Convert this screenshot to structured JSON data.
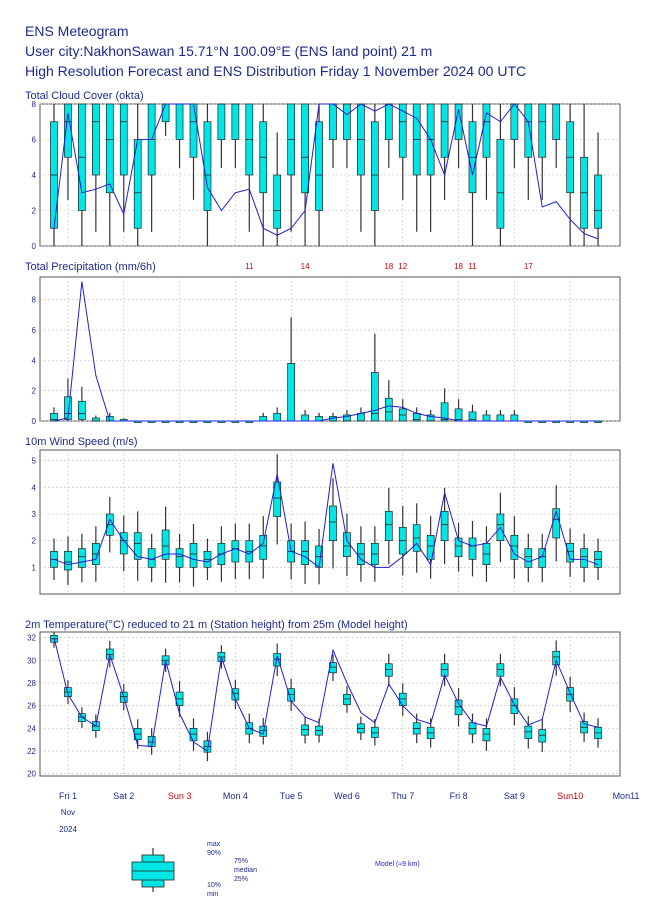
{
  "header": {
    "line1": "ENS Meteogram",
    "line2": "User city:NakhonSawan 15.71°N 100.09°E (ENS land point) 21 m",
    "line3": "High Resolution Forecast and ENS Distribution Friday 1 November 2024 00 UTC"
  },
  "x_axis": {
    "days": [
      {
        "label": "Fri 1",
        "color": "#1e2a8a"
      },
      {
        "label": "Sat 2",
        "color": "#1e2a8a"
      },
      {
        "label": "Sun 3",
        "color": "#cc0000"
      },
      {
        "label": "Mon 4",
        "color": "#1e2a8a"
      },
      {
        "label": "Tue 5",
        "color": "#1e2a8a"
      },
      {
        "label": "Wed 6",
        "color": "#1e2a8a"
      },
      {
        "label": "Thu 7",
        "color": "#1e2a8a"
      },
      {
        "label": "Fri 8",
        "color": "#1e2a8a"
      },
      {
        "label": "Sat 9",
        "color": "#1e2a8a"
      },
      {
        "label": "Sun10",
        "color": "#cc0000"
      },
      {
        "label": "Mon11",
        "color": "#1e2a8a"
      }
    ],
    "month": "Nov",
    "year": "2024"
  },
  "legend": {
    "max": "max",
    "p90": "90%",
    "p75": "75%",
    "median": "median",
    "p25": "25%",
    "p10": "10%",
    "min": "min",
    "model": "Model (≈9 km)"
  },
  "colors": {
    "box": "#00e6e6",
    "hres": "#1f1fd6",
    "text": "#1e2a8a",
    "exceed": "#cc0000"
  },
  "chart_data": [
    {
      "type": "box",
      "title": "Total Cloud Cover (okta)",
      "ylim": [
        0,
        8
      ],
      "yticks": [
        0,
        2,
        4,
        6,
        8
      ],
      "box_every": 1,
      "steps_per_day": 4,
      "n_steps": 40,
      "median": [
        4,
        7,
        5,
        7,
        6,
        7,
        3,
        6,
        8,
        8,
        7,
        4,
        8,
        8,
        6,
        5,
        2,
        6,
        5,
        4,
        8,
        8,
        6,
        4,
        8,
        7,
        6,
        6,
        7,
        8,
        5,
        7,
        3,
        8,
        7,
        7,
        8,
        5,
        3,
        2
      ],
      "p25": [
        1,
        5,
        2,
        4,
        3,
        4,
        1,
        4,
        7,
        6,
        5,
        2,
        6,
        6,
        4,
        3,
        1,
        4,
        3,
        2,
        6,
        6,
        4,
        2,
        6,
        5,
        4,
        4,
        5,
        6,
        3,
        5,
        1,
        6,
        5,
        5,
        6,
        3,
        1,
        1
      ],
      "p75": [
        7,
        8,
        8,
        8,
        8,
        8,
        6,
        8,
        8,
        8,
        8,
        7,
        8,
        8,
        8,
        7,
        4,
        8,
        8,
        7,
        8,
        8,
        8,
        7,
        8,
        8,
        8,
        8,
        8,
        8,
        7,
        8,
        6,
        8,
        8,
        8,
        8,
        7,
        5,
        4
      ],
      "hres": [
        1,
        7.5,
        3,
        3.2,
        3.5,
        1.8,
        6,
        6,
        8,
        8,
        8,
        3.3,
        2,
        3,
        3.2,
        1,
        0.6,
        1,
        2,
        8,
        8,
        7.4,
        8,
        7.6,
        8,
        7.6,
        7.2,
        6,
        4,
        7.7,
        4,
        7.5,
        7,
        8,
        7,
        2.2,
        2.5,
        1.5,
        0.7,
        0.4
      ],
      "exceed": []
    },
    {
      "type": "box",
      "title": "Total Precipitation (mm/6h)",
      "ylim": [
        0,
        9.5
      ],
      "yticks": [
        0,
        2,
        4,
        6,
        8
      ],
      "box_every": 1,
      "steps_per_day": 4,
      "n_steps": 40,
      "median": [
        0.1,
        0.5,
        0.5,
        0,
        0,
        0,
        0,
        0,
        0,
        0,
        0,
        0,
        0,
        0,
        0,
        0,
        0,
        0,
        0,
        0,
        0,
        0,
        0,
        0.5,
        0.6,
        0.4,
        0.1,
        0,
        0.1,
        0.1,
        0.1,
        0,
        0,
        0,
        0,
        0,
        0,
        0,
        0,
        0
      ],
      "p25": [
        0,
        0.1,
        0.1,
        0,
        0,
        0,
        0,
        0,
        0,
        0,
        0,
        0,
        0,
        0,
        0,
        0,
        0,
        0,
        0,
        0,
        0,
        0,
        0,
        0,
        0,
        0,
        0,
        0,
        0,
        0,
        0,
        0,
        0,
        0,
        0,
        0,
        0,
        0,
        0,
        0
      ],
      "p75": [
        0.5,
        1.6,
        1.3,
        0.2,
        0.3,
        0.1,
        0,
        0,
        0,
        0,
        0,
        0,
        0,
        0,
        0,
        0.3,
        0.5,
        3.8,
        0.4,
        0.3,
        0.3,
        0.4,
        0.5,
        3.2,
        1.5,
        0.8,
        0.5,
        0.4,
        1.2,
        0.8,
        0.6,
        0.4,
        0.4,
        0.4,
        0,
        0,
        0,
        0,
        0,
        0
      ],
      "hres": [
        0,
        0.2,
        9.2,
        3,
        0,
        0,
        0,
        0,
        0,
        0,
        0,
        0,
        0,
        0,
        0,
        0,
        0,
        0,
        0,
        0,
        0.2,
        0.3,
        0.5,
        0.7,
        1,
        0.9,
        0.5,
        0.3,
        0.2,
        0,
        0,
        0,
        0,
        0,
        0,
        0,
        0,
        0,
        0,
        0
      ],
      "exceed": [
        {
          "step": 14,
          "label": "11"
        },
        {
          "step": 18,
          "label": "14"
        },
        {
          "step": 24,
          "label": "18"
        },
        {
          "step": 25,
          "label": "12"
        },
        {
          "step": 29,
          "label": "18"
        },
        {
          "step": 30,
          "label": "11"
        },
        {
          "step": 34,
          "label": "17"
        }
      ]
    },
    {
      "type": "box",
      "title": "10m Wind Speed (m/s)",
      "ylim": [
        0,
        5.4
      ],
      "yticks": [
        1,
        2,
        3,
        4,
        5
      ],
      "box_every": 1,
      "steps_per_day": 4,
      "n_steps": 40,
      "median": [
        1.3,
        1.2,
        1.4,
        1.5,
        2.6,
        2.0,
        1.9,
        1.3,
        1.8,
        1.4,
        1.5,
        1.3,
        1.5,
        1.7,
        1.6,
        1.8,
        3.6,
        1.6,
        1.6,
        1.4,
        2.7,
        1.8,
        1.5,
        1.5,
        2.6,
        2.0,
        2.1,
        1.8,
        2.6,
        1.8,
        1.8,
        1.5,
        2.6,
        1.8,
        1.4,
        1.4,
        2.8,
        1.6,
        1.4,
        1.3
      ],
      "p25": [
        1.0,
        0.9,
        1.0,
        1.1,
        2.2,
        1.5,
        1.3,
        1.0,
        1.3,
        1.0,
        1.0,
        1.0,
        1.1,
        1.2,
        1.2,
        1.3,
        2.9,
        1.2,
        1.1,
        1.0,
        2.0,
        1.4,
        1.1,
        1.1,
        2.0,
        1.5,
        1.6,
        1.3,
        2.0,
        1.4,
        1.3,
        1.1,
        2.0,
        1.3,
        1.0,
        1.0,
        2.1,
        1.2,
        1.0,
        1.0
      ],
      "p75": [
        1.6,
        1.6,
        1.7,
        1.9,
        3.0,
        2.3,
        2.3,
        1.7,
        2.4,
        1.7,
        1.9,
        1.6,
        1.9,
        2.0,
        2.0,
        2.2,
        4.2,
        2.0,
        2.0,
        1.8,
        3.3,
        2.3,
        1.9,
        1.9,
        3.1,
        2.5,
        2.6,
        2.2,
        3.1,
        2.1,
        2.1,
        1.9,
        3.0,
        2.2,
        1.7,
        1.7,
        3.2,
        1.9,
        1.7,
        1.6
      ],
      "hres": [
        1.3,
        1.1,
        1.2,
        1.3,
        2.8,
        2.0,
        1.4,
        1.3,
        1.5,
        1.5,
        1.3,
        1.2,
        1.5,
        1.7,
        1.5,
        1.9,
        4.5,
        1.6,
        1.4,
        1.0,
        4.9,
        2.0,
        1.3,
        1.0,
        1.0,
        1.4,
        1.9,
        1.1,
        3.8,
        2.0,
        1.8,
        1.9,
        2.5,
        1.5,
        1.2,
        1.4,
        3.1,
        1.3,
        1.3,
        1.1
      ],
      "exceed": []
    },
    {
      "type": "box",
      "title": "2m Temperature(°C) reduced to 21 m (Station height) from 25m (Model height)",
      "ylim": [
        19.8,
        32.5
      ],
      "yticks": [
        20,
        22,
        24,
        26,
        28,
        30,
        32
      ],
      "box_every": 1,
      "steps_per_day": 4,
      "n_steps": 40,
      "median": [
        31.9,
        27.2,
        25.0,
        24.2,
        30.5,
        26.8,
        23.5,
        22.8,
        30.0,
        26.6,
        23.5,
        22.4,
        30.3,
        27.1,
        24.0,
        23.8,
        30.1,
        27.0,
        23.9,
        23.8,
        29.4,
        26.6,
        24.0,
        23.6,
        29.2,
        26.6,
        24.0,
        23.6,
        29.2,
        25.9,
        24.0,
        23.5,
        29.2,
        26.0,
        23.7,
        23.4,
        30.3,
        27.0,
        24.1,
        23.6
      ],
      "p25": [
        31.6,
        26.8,
        24.6,
        23.8,
        30.1,
        26.3,
        23.0,
        22.4,
        29.6,
        26.0,
        22.9,
        21.9,
        29.9,
        26.5,
        23.5,
        23.3,
        29.5,
        26.4,
        23.4,
        23.4,
        28.9,
        26.1,
        23.6,
        23.2,
        28.6,
        26.0,
        23.5,
        23.1,
        28.6,
        25.2,
        23.5,
        22.9,
        28.6,
        25.3,
        23.1,
        22.8,
        29.6,
        26.4,
        23.6,
        23.1
      ],
      "p75": [
        32.2,
        27.6,
        25.3,
        24.6,
        31.0,
        27.2,
        24.0,
        23.3,
        30.4,
        27.2,
        24.0,
        22.9,
        30.7,
        27.5,
        24.5,
        24.2,
        30.6,
        27.5,
        24.3,
        24.2,
        29.8,
        27.0,
        24.4,
        24.1,
        29.7,
        27.1,
        24.5,
        24.1,
        29.7,
        26.5,
        24.5,
        24.0,
        29.7,
        26.6,
        24.2,
        23.9,
        30.8,
        27.6,
        24.6,
        24.1
      ],
      "hres": [
        32.0,
        27.0,
        25.0,
        24.2,
        30.5,
        26.8,
        22.5,
        22.4,
        30.0,
        25.3,
        22.8,
        22.0,
        30.3,
        26.6,
        24.0,
        23.5,
        30.4,
        26.4,
        25.0,
        24.5,
        30.9,
        28.0,
        25.4,
        24.5,
        27.9,
        26.0,
        24.8,
        24.4,
        28.7,
        26.2,
        24.5,
        24.2,
        28.5,
        26.1,
        24.3,
        24.8,
        30.0,
        27.1,
        24.4,
        24.1
      ],
      "exceed": []
    }
  ]
}
